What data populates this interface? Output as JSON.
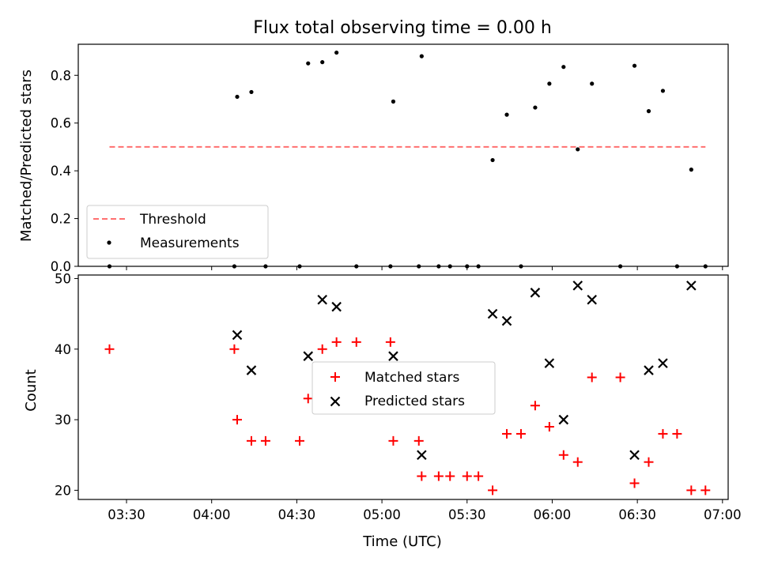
{
  "chart_data": [
    {
      "type": "scatter",
      "title": "Flux total observing time = 0.00 h",
      "xlabel": "",
      "ylabel": "Matched/Predicted stars",
      "x_axis": "time (UTC)",
      "xlim": [
        "03:13",
        "07:02"
      ],
      "ylim": [
        0,
        0.93
      ],
      "yticks": [
        0.0,
        0.2,
        0.4,
        0.6,
        0.8
      ],
      "ytick_labels": [
        "0.0",
        "0.2",
        "0.4",
        "0.6",
        "0.8"
      ],
      "grid": false,
      "legend_position": "lower-left",
      "threshold": {
        "name": "Threshold",
        "value": 0.5,
        "x_range": [
          "03:24",
          "06:54"
        ],
        "color": "#ff7070",
        "style": "dashed"
      },
      "series": [
        {
          "name": "Measurements",
          "color": "#000000",
          "marker": "dot",
          "points": [
            {
              "x": "03:24",
              "y": 0.0
            },
            {
              "x": "04:08",
              "y": 0.0
            },
            {
              "x": "04:09",
              "y": 0.71
            },
            {
              "x": "04:14",
              "y": 0.73
            },
            {
              "x": "04:19",
              "y": 0.0
            },
            {
              "x": "04:31",
              "y": 0.0
            },
            {
              "x": "04:34",
              "y": 0.85
            },
            {
              "x": "04:39",
              "y": 0.855
            },
            {
              "x": "04:44",
              "y": 0.895
            },
            {
              "x": "04:51",
              "y": 0.0
            },
            {
              "x": "05:03",
              "y": 0.0
            },
            {
              "x": "05:04",
              "y": 0.69
            },
            {
              "x": "05:13",
              "y": 0.0
            },
            {
              "x": "05:14",
              "y": 0.88
            },
            {
              "x": "05:20",
              "y": 0.0
            },
            {
              "x": "05:24",
              "y": 0.0
            },
            {
              "x": "05:30",
              "y": 0.0
            },
            {
              "x": "05:34",
              "y": 0.0
            },
            {
              "x": "05:39",
              "y": 0.445
            },
            {
              "x": "05:44",
              "y": 0.635
            },
            {
              "x": "05:49",
              "y": 0.0
            },
            {
              "x": "05:54",
              "y": 0.665
            },
            {
              "x": "05:59",
              "y": 0.765
            },
            {
              "x": "06:04",
              "y": 0.835
            },
            {
              "x": "06:09",
              "y": 0.49
            },
            {
              "x": "06:14",
              "y": 0.765
            },
            {
              "x": "06:24",
              "y": 0.0
            },
            {
              "x": "06:29",
              "y": 0.84
            },
            {
              "x": "06:34",
              "y": 0.65
            },
            {
              "x": "06:39",
              "y": 0.735
            },
            {
              "x": "06:44",
              "y": 0.0
            },
            {
              "x": "06:49",
              "y": 0.405
            },
            {
              "x": "06:54",
              "y": 0.0
            }
          ]
        }
      ]
    },
    {
      "type": "scatter",
      "title": "",
      "xlabel": "Time (UTC)",
      "ylabel": "Count",
      "xlim": [
        "03:13",
        "07:02"
      ],
      "ylim": [
        18.7,
        50.5
      ],
      "yticks": [
        20,
        30,
        40,
        50
      ],
      "ytick_labels": [
        "20",
        "30",
        "40",
        "50"
      ],
      "xticks": [
        "03:30",
        "04:00",
        "04:30",
        "05:00",
        "05:30",
        "06:00",
        "06:30",
        "07:00"
      ],
      "xtick_labels": [
        "03:30",
        "04:00",
        "04:30",
        "05:00",
        "05:30",
        "06:00",
        "06:30",
        "07:00"
      ],
      "grid": false,
      "legend_position": "center",
      "series": [
        {
          "name": "Matched stars",
          "color": "#ff0000",
          "marker": "plus",
          "points": [
            {
              "x": "03:24",
              "y": 40
            },
            {
              "x": "04:08",
              "y": 40
            },
            {
              "x": "04:09",
              "y": 30
            },
            {
              "x": "04:14",
              "y": 27
            },
            {
              "x": "04:19",
              "y": 27
            },
            {
              "x": "04:31",
              "y": 27
            },
            {
              "x": "04:34",
              "y": 33
            },
            {
              "x": "04:39",
              "y": 40
            },
            {
              "x": "04:44",
              "y": 41
            },
            {
              "x": "04:51",
              "y": 41
            },
            {
              "x": "05:03",
              "y": 41
            },
            {
              "x": "05:04",
              "y": 27
            },
            {
              "x": "05:13",
              "y": 27
            },
            {
              "x": "05:14",
              "y": 22
            },
            {
              "x": "05:20",
              "y": 22
            },
            {
              "x": "05:24",
              "y": 22
            },
            {
              "x": "05:30",
              "y": 22
            },
            {
              "x": "05:34",
              "y": 22
            },
            {
              "x": "05:39",
              "y": 20
            },
            {
              "x": "05:44",
              "y": 28
            },
            {
              "x": "05:49",
              "y": 28
            },
            {
              "x": "05:54",
              "y": 32
            },
            {
              "x": "05:59",
              "y": 29
            },
            {
              "x": "06:04",
              "y": 25
            },
            {
              "x": "06:09",
              "y": 24
            },
            {
              "x": "06:14",
              "y": 36
            },
            {
              "x": "06:24",
              "y": 36
            },
            {
              "x": "06:29",
              "y": 21
            },
            {
              "x": "06:34",
              "y": 24
            },
            {
              "x": "06:39",
              "y": 28
            },
            {
              "x": "06:44",
              "y": 28
            },
            {
              "x": "06:49",
              "y": 20
            },
            {
              "x": "06:54",
              "y": 20
            }
          ]
        },
        {
          "name": "Predicted stars",
          "color": "#000000",
          "marker": "x",
          "points": [
            {
              "x": "04:09",
              "y": 42
            },
            {
              "x": "04:14",
              "y": 37
            },
            {
              "x": "04:34",
              "y": 39
            },
            {
              "x": "04:39",
              "y": 47
            },
            {
              "x": "04:44",
              "y": 46
            },
            {
              "x": "05:04",
              "y": 39
            },
            {
              "x": "05:14",
              "y": 25
            },
            {
              "x": "05:39",
              "y": 45
            },
            {
              "x": "05:44",
              "y": 44
            },
            {
              "x": "05:54",
              "y": 48
            },
            {
              "x": "05:59",
              "y": 38
            },
            {
              "x": "06:04",
              "y": 30
            },
            {
              "x": "06:09",
              "y": 49
            },
            {
              "x": "06:14",
              "y": 47
            },
            {
              "x": "06:29",
              "y": 25
            },
            {
              "x": "06:34",
              "y": 37
            },
            {
              "x": "06:39",
              "y": 38
            },
            {
              "x": "06:49",
              "y": 49
            }
          ]
        }
      ]
    }
  ]
}
